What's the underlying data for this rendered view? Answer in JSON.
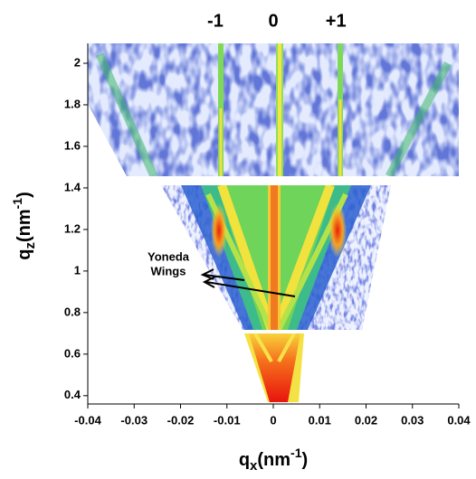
{
  "chart_data": {
    "type": "heatmap",
    "x_label": {
      "text": "q",
      "sub": "x",
      "unit": "(nm",
      "sup": "-1",
      "close": ")"
    },
    "y_label": {
      "text": "q",
      "sub": "z",
      "unit": "(nm",
      "sup": "-1",
      "close": ")"
    },
    "xlim": [
      -0.04,
      0.04
    ],
    "xticks": [
      -0.04,
      -0.03,
      -0.02,
      -0.01,
      0,
      0.01,
      0.02,
      0.03,
      0.04
    ],
    "ylim": [
      0.36,
      2.1
    ],
    "yticks": [
      0.4,
      0.6,
      0.8,
      1,
      1.2,
      1.4,
      1.6,
      1.8,
      2
    ],
    "x2ticks": [
      {
        "value": -0.0125,
        "label": "-1"
      },
      {
        "value": 0,
        "label": "0"
      },
      {
        "value": 0.0135,
        "label": "+1"
      }
    ],
    "annotation": [
      "Yoneda",
      "Wings"
    ]
  }
}
